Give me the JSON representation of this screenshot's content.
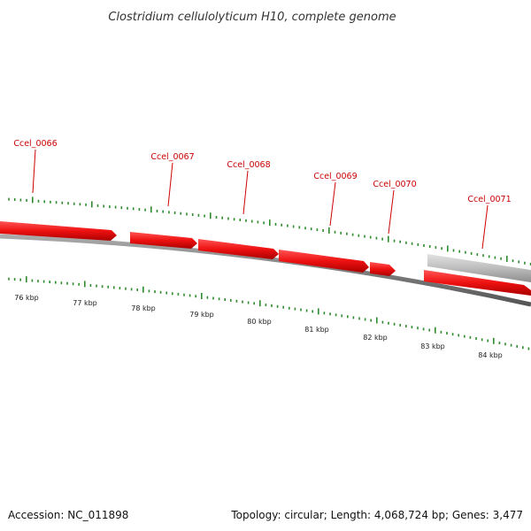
{
  "title": "Clostridium cellulolyticum H10, complete genome",
  "footer": {
    "accession": "Accession: NC_011898",
    "summary": "Topology: circular; Length: 4,068,724 bp; Genes: 3,477"
  },
  "genes": [
    {
      "label": "Ccel_0066",
      "color": "#ee1111",
      "strand": "+"
    },
    {
      "label": "Ccel_0067",
      "color": "#ee1111",
      "strand": "+"
    },
    {
      "label": "Ccel_0068",
      "color": "#ee1111",
      "strand": "+"
    },
    {
      "label": "Ccel_0069",
      "color": "#ee1111",
      "strand": "+"
    },
    {
      "label": "Ccel_0070",
      "color": "#ee1111",
      "strand": "+"
    },
    {
      "label": "Ccel_0071",
      "color": "#ee1111",
      "strand": "+"
    }
  ],
  "scale_labels": [
    "76 kbp",
    "77 kbp",
    "78 kbp",
    "79 kbp",
    "80 kbp",
    "81 kbp",
    "82 kbp",
    "83 kbp",
    "84 kbp"
  ],
  "colors": {
    "gene": "#ee1111",
    "gene_label": "#cc0000",
    "tick": "#2e8b2e",
    "backbone": "#777777",
    "other_feature": "#bdbdbd"
  }
}
